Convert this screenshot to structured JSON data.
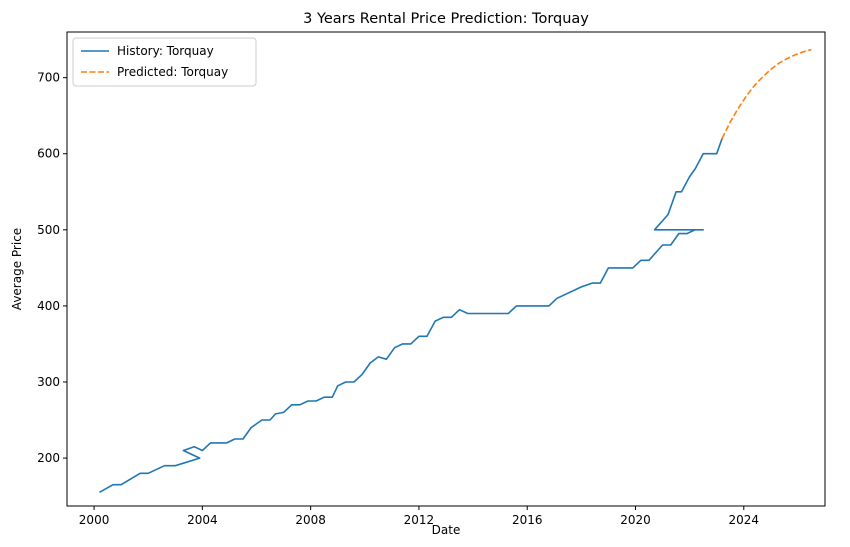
{
  "chart_data": {
    "type": "line",
    "title": "3 Years Rental Price Prediction: Torquay",
    "xlabel": "Date",
    "ylabel": "Average Price",
    "xlim": [
      1999.0,
      2027.0
    ],
    "ylim": [
      137,
      760
    ],
    "x_ticks": [
      2000,
      2004,
      2008,
      2012,
      2016,
      2020,
      2024
    ],
    "y_ticks": [
      200,
      300,
      400,
      500,
      600,
      700
    ],
    "grid": false,
    "legend_position": "top-left",
    "series": [
      {
        "name": "History: Torquay",
        "style": "solid",
        "color": "#1f77b4",
        "points": [
          [
            2000.2,
            155
          ],
          [
            2000.7,
            165
          ],
          [
            2001.0,
            165
          ],
          [
            2001.7,
            180
          ],
          [
            2002.0,
            180
          ],
          [
            2002.6,
            190
          ],
          [
            2003.0,
            190
          ],
          [
            2003.9,
            200
          ],
          [
            2003.3,
            210
          ],
          [
            2003.7,
            215
          ],
          [
            2004.0,
            210
          ],
          [
            2004.3,
            220
          ],
          [
            2004.9,
            220
          ],
          [
            2005.2,
            225
          ],
          [
            2005.5,
            225
          ],
          [
            2005.8,
            240
          ],
          [
            2006.2,
            250
          ],
          [
            2006.5,
            250
          ],
          [
            2006.7,
            258
          ],
          [
            2007.0,
            260
          ],
          [
            2007.3,
            270
          ],
          [
            2007.6,
            270
          ],
          [
            2007.9,
            275
          ],
          [
            2008.2,
            275
          ],
          [
            2008.5,
            280
          ],
          [
            2008.8,
            280
          ],
          [
            2009.0,
            295
          ],
          [
            2009.3,
            300
          ],
          [
            2009.6,
            300
          ],
          [
            2009.9,
            310
          ],
          [
            2010.2,
            325
          ],
          [
            2010.5,
            333
          ],
          [
            2010.8,
            330
          ],
          [
            2011.1,
            345
          ],
          [
            2011.4,
            350
          ],
          [
            2011.7,
            350
          ],
          [
            2012.0,
            360
          ],
          [
            2012.3,
            360
          ],
          [
            2012.6,
            380
          ],
          [
            2012.9,
            385
          ],
          [
            2013.2,
            385
          ],
          [
            2013.5,
            395
          ],
          [
            2013.8,
            390
          ],
          [
            2014.1,
            390
          ],
          [
            2014.4,
            390
          ],
          [
            2015.3,
            390
          ],
          [
            2015.6,
            400
          ],
          [
            2016.2,
            400
          ],
          [
            2016.8,
            400
          ],
          [
            2017.1,
            410
          ],
          [
            2018.0,
            425
          ],
          [
            2018.4,
            430
          ],
          [
            2018.7,
            430
          ],
          [
            2019.0,
            450
          ],
          [
            2019.9,
            450
          ],
          [
            2020.2,
            460
          ],
          [
            2020.5,
            460
          ],
          [
            2021.0,
            480
          ],
          [
            2021.3,
            480
          ],
          [
            2021.6,
            495
          ],
          [
            2021.9,
            495
          ],
          [
            2022.2,
            500
          ],
          [
            2022.5,
            500
          ],
          [
            2020.7,
            500
          ],
          [
            2021.2,
            520
          ],
          [
            2021.5,
            550
          ],
          [
            2021.7,
            550
          ],
          [
            2022.0,
            570
          ],
          [
            2022.2,
            580
          ],
          [
            2022.5,
            600
          ],
          [
            2022.8,
            600
          ],
          [
            2023.0,
            600
          ],
          [
            2023.2,
            620
          ]
        ]
      },
      {
        "name": "Predicted: Torquay",
        "style": "dashed",
        "color": "#ff7f0e",
        "points": [
          [
            2023.2,
            620
          ],
          [
            2023.5,
            642
          ],
          [
            2023.8,
            660
          ],
          [
            2024.1,
            676
          ],
          [
            2024.4,
            690
          ],
          [
            2024.7,
            701
          ],
          [
            2025.0,
            711
          ],
          [
            2025.3,
            719
          ],
          [
            2025.6,
            725
          ],
          [
            2025.9,
            730
          ],
          [
            2026.2,
            734
          ],
          [
            2026.5,
            737
          ]
        ]
      }
    ]
  }
}
